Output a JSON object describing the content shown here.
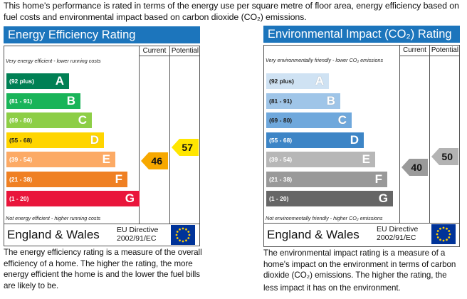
{
  "intro_text": "This home's performance is rated in terms of the energy use per square metre of floor area, energy efficiency based on fuel costs and environmental impact based on carbon dioxide (CO₂) emissions.",
  "headers": {
    "current": "Current",
    "potential": "Potential"
  },
  "footer": {
    "region": "England & Wales",
    "directive_line1": "EU Directive",
    "directive_line2": "2002/91/EC"
  },
  "energy": {
    "title": "Energy Efficiency Rating",
    "top_note": "Very energy efficient - lower running costs",
    "bottom_note": "Not energy efficient - higher running costs",
    "bands": [
      {
        "range": "(92 plus)",
        "letter": "A",
        "color": "#008054"
      },
      {
        "range": "(81 - 91)",
        "letter": "B",
        "color": "#19b459"
      },
      {
        "range": "(69 - 80)",
        "letter": "C",
        "color": "#8dce46"
      },
      {
        "range": "(55 - 68)",
        "letter": "D",
        "color": "#ffd500"
      },
      {
        "range": "(39 - 54)",
        "letter": "E",
        "color": "#fcaa65"
      },
      {
        "range": "(21 - 38)",
        "letter": "F",
        "color": "#ef8023"
      },
      {
        "range": "(1 - 20)",
        "letter": "G",
        "color": "#e9153b"
      }
    ],
    "current": {
      "value": "46",
      "color": "#f7a800"
    },
    "potential": {
      "value": "57",
      "color": "#ffe600"
    },
    "description": "The energy efficiency rating is a measure of the overall efficiency of a home. The higher the rating, the more energy efficient the home is and the lower the fuel bills are likely to be."
  },
  "environment": {
    "title": "Environmental Impact (CO₂) Rating",
    "top_note": "Very environmentally friendly - lower CO₂ emissions",
    "bottom_note": "Not environmentally friendly - higher CO₂ emissions",
    "bands": [
      {
        "range": "(92 plus)",
        "letter": "A",
        "color": "#cfe2f3"
      },
      {
        "range": "(81 - 91)",
        "letter": "B",
        "color": "#9fc5e8"
      },
      {
        "range": "(69 - 80)",
        "letter": "C",
        "color": "#6fa8dc"
      },
      {
        "range": "(55 - 68)",
        "letter": "D",
        "color": "#3d85c6"
      },
      {
        "range": "(39 - 54)",
        "letter": "E",
        "color": "#b7b7b7"
      },
      {
        "range": "(21 - 38)",
        "letter": "F",
        "color": "#999999"
      },
      {
        "range": "(1 - 20)",
        "letter": "G",
        "color": "#666666"
      }
    ],
    "current": {
      "value": "40",
      "color": "#9a9a9a"
    },
    "potential": {
      "value": "50",
      "color": "#b3b3b3"
    },
    "description_pre": "The environmental impact rating is a measure of a home's impact on the environment in terms of carbon dioxide (CO₂) emissions. The higher the rating, the",
    "description_last": "less impact it has on the environment."
  }
}
